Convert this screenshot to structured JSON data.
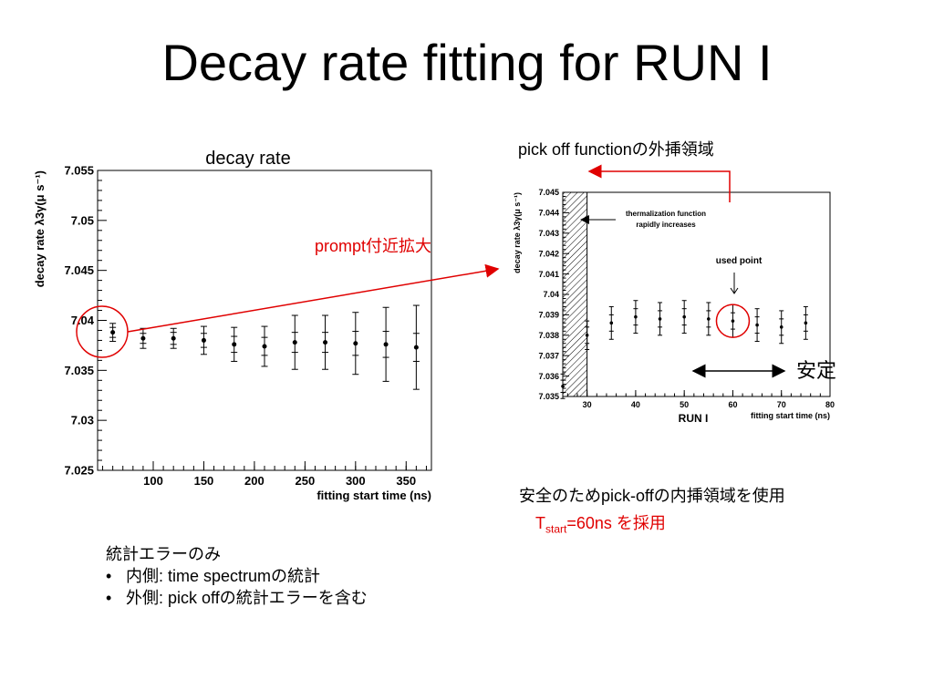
{
  "slide": {
    "title": "Decay rate fitting for RUN I",
    "prompt_label": "prompt付近拡大",
    "pick_off_label": "pick off functionの外挿領域",
    "stable_label": "安定",
    "conclusion_line1": "安全のためpick-offの内挿領域を使用",
    "conclusion_T": "T",
    "conclusion_sub": "start",
    "conclusion_rest": "=60ns を採用",
    "notes_heading": "統計エラーのみ",
    "notes": [
      {
        "bullet": "•",
        "text": "内側: time spectrumの統計"
      },
      {
        "bullet": "•",
        "text": "外側: pick offの統計エラーを含む"
      }
    ],
    "colors": {
      "accent_red": "#e00000",
      "ink": "#000000"
    }
  },
  "chart_data": [
    {
      "type": "scatter",
      "title": "decay rate",
      "xlabel": "fitting start time (ns)",
      "ylabel": "decay rate λ3γ(μ s⁻¹)",
      "xlim": [
        45,
        375
      ],
      "ylim": [
        7.025,
        7.055
      ],
      "xticks": [
        "100",
        "150",
        "200",
        "250",
        "300",
        "350"
      ],
      "yticks": [
        "7.025",
        "7.03",
        "7.035",
        "7.04",
        "7.045",
        "7.05",
        "7.055"
      ],
      "x": [
        60,
        90,
        120,
        150,
        180,
        210,
        240,
        270,
        300,
        330,
        360
      ],
      "y": [
        7.0388,
        7.0382,
        7.0382,
        7.038,
        7.0376,
        7.0374,
        7.0378,
        7.0378,
        7.0377,
        7.0376,
        7.0373
      ],
      "err_inner": [
        0.0005,
        0.0005,
        0.0006,
        0.0007,
        0.0008,
        0.0009,
        0.001,
        0.001,
        0.0012,
        0.0013,
        0.0014
      ],
      "err_outer": [
        0.0009,
        0.001,
        0.001,
        0.0014,
        0.0017,
        0.002,
        0.0027,
        0.0027,
        0.0031,
        0.0037,
        0.0042
      ],
      "grid": false
    },
    {
      "type": "scatter",
      "title": "",
      "run_label": "RUN I",
      "xlabel": "fitting start time (ns)",
      "ylabel": "decay rate λ3γ(μ s⁻¹)",
      "xlim": [
        25,
        80
      ],
      "ylim": [
        7.035,
        7.045
      ],
      "xticks": [
        "30",
        "40",
        "50",
        "60",
        "70",
        "80"
      ],
      "yticks": [
        "7.035",
        "7.036",
        "7.037",
        "7.038",
        "7.039",
        "7.04",
        "7.041",
        "7.042",
        "7.043",
        "7.044",
        "7.045"
      ],
      "x": [
        25,
        30,
        35,
        40,
        45,
        50,
        55,
        60,
        65,
        70,
        75
      ],
      "y": [
        7.0355,
        7.038,
        7.0386,
        7.0389,
        7.0388,
        7.0389,
        7.0388,
        7.0387,
        7.0385,
        7.0384,
        7.0386
      ],
      "err_inner": [
        0.0003,
        0.0004,
        0.0004,
        0.0004,
        0.0004,
        0.0004,
        0.0004,
        0.0004,
        0.0004,
        0.0004,
        0.0004
      ],
      "err_outer": [
        0.0006,
        0.0007,
        0.0008,
        0.0008,
        0.0008,
        0.0008,
        0.0008,
        0.0008,
        0.0008,
        0.0008,
        0.0008
      ],
      "hatched_region_x": [
        25,
        30
      ],
      "annotations": [
        "thermalization function rapidly increases",
        "used point"
      ],
      "used_point_x": 60,
      "grid": false
    }
  ]
}
